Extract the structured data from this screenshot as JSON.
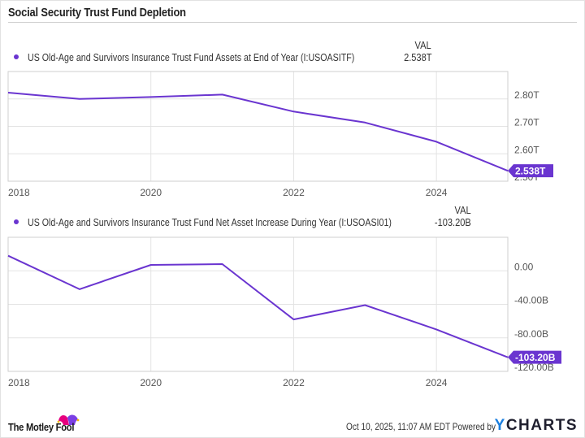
{
  "title": "Social Security Trust Fund Depletion",
  "colors": {
    "line": "#6a35d0",
    "grid": "#e3e3e3",
    "axis": "#cfcfcf",
    "badge": "#6a35d0",
    "ycharts_y": "#1a7fe0"
  },
  "footer": {
    "brand": "The Motley Fool",
    "timestamp": "Oct 10, 2025, 11:07 AM EDT",
    "powered_by": "Powered by",
    "ycharts_y": "Y",
    "ycharts_rest": "CHARTS"
  },
  "chart_data": [
    {
      "type": "line",
      "series_name": "US Old-Age and Survivors Insurance Trust Fund Assets at End of Year (I:USOASITF)",
      "val_header": "VAL",
      "val_display": "2.538T",
      "badge": "2.538T",
      "x": [
        2018,
        2019,
        2020,
        2021,
        2022,
        2023,
        2024,
        2025
      ],
      "values": [
        2.823,
        2.8,
        2.807,
        2.816,
        2.754,
        2.714,
        2.644,
        2.538
      ],
      "units": "T",
      "ylim": [
        2.5,
        2.9
      ],
      "xlim": [
        2018,
        2025
      ],
      "y_ticks": [
        {
          "value": 2.8,
          "label": "2.80T"
        },
        {
          "value": 2.7,
          "label": "2.70T"
        },
        {
          "value": 2.6,
          "label": "2.60T"
        },
        {
          "value": 2.5,
          "label": "2.50T"
        }
      ],
      "x_ticks": [
        {
          "value": 2018,
          "label": "2018"
        },
        {
          "value": 2020,
          "label": "2020"
        },
        {
          "value": 2022,
          "label": "2022"
        },
        {
          "value": 2024,
          "label": "2024"
        }
      ],
      "grid": true,
      "legend": "top-left"
    },
    {
      "type": "line",
      "series_name": "US Old-Age and Survivors Insurance Trust Fund Net Asset Increase During Year (I:USOASI01)",
      "val_header": "VAL",
      "val_display": "-103.20B",
      "badge": "-103.20B",
      "x": [
        2018,
        2019,
        2020,
        2021,
        2022,
        2023,
        2024,
        2025
      ],
      "values": [
        18,
        -22,
        7,
        8,
        -58,
        -41,
        -70,
        -103.2
      ],
      "units": "B",
      "ylim": [
        -120,
        40
      ],
      "xlim": [
        2018,
        2025
      ],
      "y_ticks": [
        {
          "value": 0,
          "label": "0.00"
        },
        {
          "value": -40,
          "label": "-40.00B"
        },
        {
          "value": -80,
          "label": "-80.00B"
        },
        {
          "value": -120,
          "label": "-120.00B"
        }
      ],
      "x_ticks": [
        {
          "value": 2018,
          "label": "2018"
        },
        {
          "value": 2020,
          "label": "2020"
        },
        {
          "value": 2022,
          "label": "2022"
        },
        {
          "value": 2024,
          "label": "2024"
        }
      ],
      "grid": true,
      "legend": "top-left"
    }
  ]
}
